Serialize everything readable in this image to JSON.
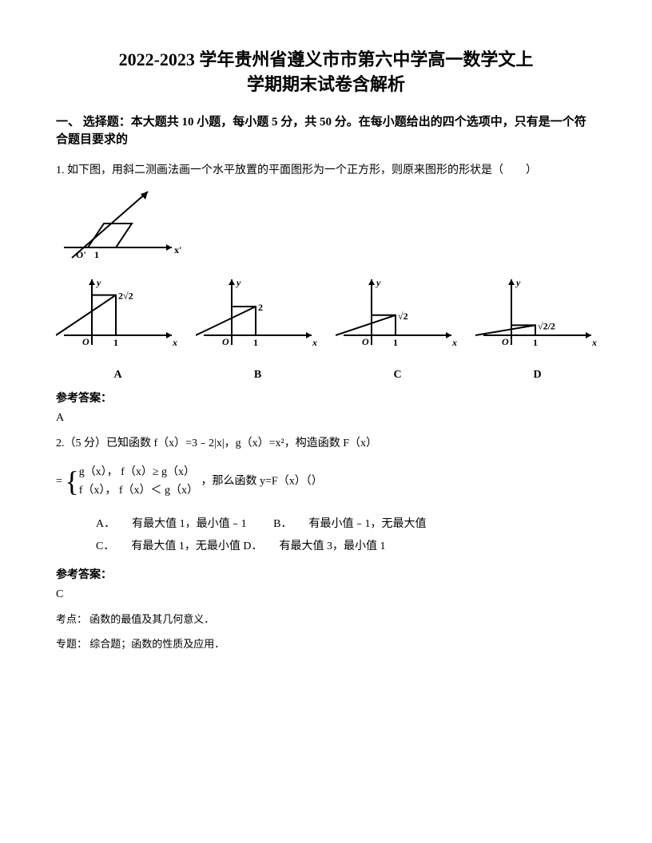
{
  "title": {
    "line1": "2022-2023 学年贵州省遵义市市第六中学高一数学文上",
    "line2": "学期期末试卷含解析"
  },
  "section1": {
    "header": "一、 选择题：本大题共 10 小题，每小题 5 分，共 50 分。在每小题给出的四个选项中，只有是一个符合题目要求的"
  },
  "q1": {
    "text": "1. 如下图，用斜二测画法画一个水平放置的平面图形为一个正方形，则原来图形的形状是（　　）",
    "answer_label": "参考答案：",
    "answer": "A",
    "main_diagram": {
      "stroke": "#000000",
      "stroke_width": 2,
      "width": 150,
      "height": 90
    },
    "options": [
      {
        "label": "A",
        "ylabel": "2√2",
        "height_val": 2.8
      },
      {
        "label": "B",
        "ylabel": "2",
        "height_val": 2.0
      },
      {
        "label": "C",
        "ylabel": "√2",
        "height_val": 1.4
      },
      {
        "label": "D",
        "ylabel": "√2/2",
        "height_val": 0.7
      }
    ],
    "option_colors": {
      "stroke": "#000000",
      "fill": "#000000",
      "stroke_width": 2
    }
  },
  "q2": {
    "prefix": "2.（5 分）已知函数 f（x）=3﹣2|x|，g（x）=x²，构造函数 F（x）",
    "piecewise_rows": [
      "g（x），  f（x）≥ g（x）",
      "f（x），  f（x）＜ g（x）"
    ],
    "suffix": "，那么函数 y=F（x）（）",
    "options": {
      "A": "有最大值 1，最小值﹣1",
      "B": "有最小值﹣1，无最大值",
      "C": "有最大值 1，无最小值",
      "D": "有最大值 3，最小值 1"
    },
    "answer_label": "参考答案：",
    "answer": "C",
    "footnote1": "考点：  函数的最值及其几何意义．",
    "footnote2": "专题：  综合题；函数的性质及应用．"
  }
}
